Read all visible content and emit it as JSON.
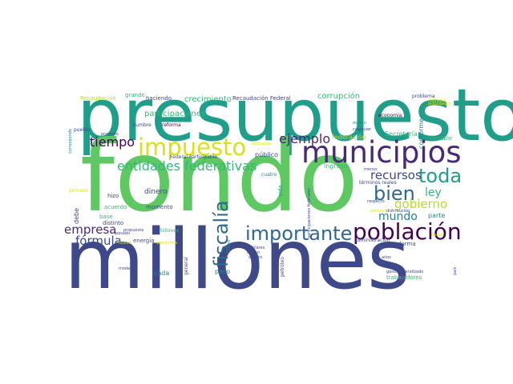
{
  "colors": {
    "teal": "#1f9e89",
    "green": "#5ec962",
    "indigo": "#3e4989",
    "navy": "#31688e",
    "purple": "#482878",
    "violet": "#440154",
    "cyan": "#26828e",
    "lime": "#b5de2b",
    "yellow": "#d8e219",
    "aqua": "#35b779"
  },
  "words": [
    {
      "text": "presupuesto",
      "color": "teal"
    },
    {
      "text": "fondo",
      "color": "green"
    },
    {
      "text": "millones",
      "color": "indigo"
    },
    {
      "text": "municipios",
      "color": "purple"
    },
    {
      "text": "impuesto",
      "color": "yellow"
    },
    {
      "text": "población",
      "color": "violet"
    },
    {
      "text": "importante",
      "color": "navy"
    },
    {
      "text": "entidades federativas",
      "color": "aqua"
    },
    {
      "text": "fiscalía",
      "color": "navy"
    },
    {
      "text": "toda",
      "color": "teal"
    },
    {
      "text": "bien",
      "color": "navy"
    },
    {
      "text": "ejemplo",
      "color": "purple"
    },
    {
      "text": "tiempo",
      "color": "violet"
    },
    {
      "text": "recursos",
      "color": "indigo"
    },
    {
      "text": "gobierno",
      "color": "lime"
    },
    {
      "text": "empresa",
      "color": "purple"
    },
    {
      "text": "fórmula",
      "color": "indigo"
    },
    {
      "text": "mundo",
      "color": "cyan"
    },
    {
      "text": "ley",
      "color": "aqua"
    },
    {
      "text": "participaciones",
      "color": "aqua"
    },
    {
      "text": "crecimiento",
      "color": "aqua"
    },
    {
      "text": "corrupción",
      "color": "aqua"
    },
    {
      "text": "Recaudación Federal",
      "color": "indigo"
    },
    {
      "text": "Recaudación",
      "color": "lime"
    },
    {
      "text": "haciendo",
      "color": "indigo"
    },
    {
      "text": "grande",
      "color": "aqua"
    },
    {
      "text": "problema",
      "color": "indigo"
    },
    {
      "text": "economía",
      "color": "violet"
    },
    {
      "text": "reforma",
      "color": "violet"
    },
    {
      "text": "cumbre",
      "color": "indigo"
    },
    {
      "text": "mismo",
      "color": "cyan"
    },
    {
      "text": "pueblo",
      "color": "indigo"
    },
    {
      "text": "Secretaría",
      "color": "aqua"
    },
    {
      "text": "federación",
      "color": "lime"
    },
    {
      "text": "conforme",
      "color": "cyan"
    },
    {
      "text": "variable",
      "color": "aqua"
    },
    {
      "text": "Federal Participable",
      "color": "indigo"
    },
    {
      "text": "público",
      "color": "indigo"
    },
    {
      "text": "ingreso",
      "color": "aqua"
    },
    {
      "text": "cuatro",
      "color": "cyan"
    },
    {
      "text": "términos reales",
      "color": "indigo"
    },
    {
      "text": "dinero",
      "color": "indigo"
    },
    {
      "text": "vida",
      "color": "teal"
    },
    {
      "text": "primero",
      "color": "yellow"
    },
    {
      "text": "hizo",
      "color": "indigo"
    },
    {
      "text": "acuerdo",
      "color": "aqua"
    },
    {
      "text": "momento",
      "color": "indigo"
    },
    {
      "text": "distinto",
      "color": "indigo"
    },
    {
      "text": "base",
      "color": "aqua"
    },
    {
      "text": "debe",
      "color": "indigo"
    },
    {
      "text": "respecto",
      "color": "indigo"
    },
    {
      "text": "parte",
      "color": "cyan"
    },
    {
      "text": "billones",
      "color": "aqua"
    },
    {
      "text": "energía",
      "color": "indigo"
    },
    {
      "text": "pandemia",
      "color": "yellow"
    },
    {
      "text": "dólares",
      "color": "indigo"
    },
    {
      "text": "casos",
      "color": "cyan"
    },
    {
      "text": "administración",
      "color": "indigo"
    },
    {
      "text": "forma",
      "color": "indigo"
    },
    {
      "text": "modelo",
      "color": "indigo"
    },
    {
      "text": "cada",
      "color": "cyan"
    },
    {
      "text": "peso",
      "color": "cyan"
    },
    {
      "text": "cuanto",
      "color": "indigo"
    },
    {
      "text": "años",
      "color": "indigo"
    },
    {
      "text": "general",
      "color": "indigo"
    },
    {
      "text": "petróleo",
      "color": "indigo"
    },
    {
      "text": "gasto federalizado",
      "color": "indigo"
    },
    {
      "text": "trabajadores",
      "color": "aqua"
    },
    {
      "text": "país",
      "color": "indigo"
    },
    {
      "text": "participaciones federales",
      "color": "indigo"
    },
    {
      "text": "corresponde",
      "color": "cyan"
    },
    {
      "text": "propuesta",
      "color": "indigo"
    },
    {
      "text": "pasado",
      "color": "indigo"
    },
    {
      "text": "elección",
      "color": "yellow"
    },
    {
      "text": "menos",
      "color": "indigo"
    },
    {
      "text": "último",
      "color": "indigo"
    },
    {
      "text": "distribución",
      "color": "indigo"
    },
    {
      "text": "nuevo",
      "color": "yellow"
    },
    {
      "text": "ciudades",
      "color": "yellow"
    },
    {
      "text": "tienen",
      "color": "yellow"
    },
    {
      "text": "cualquier",
      "color": "indigo"
    },
    {
      "text": "educación",
      "color": "yellow"
    },
    {
      "text": "proyecto",
      "color": "indigo"
    },
    {
      "text": "actividades",
      "color": "yellow"
    }
  ]
}
